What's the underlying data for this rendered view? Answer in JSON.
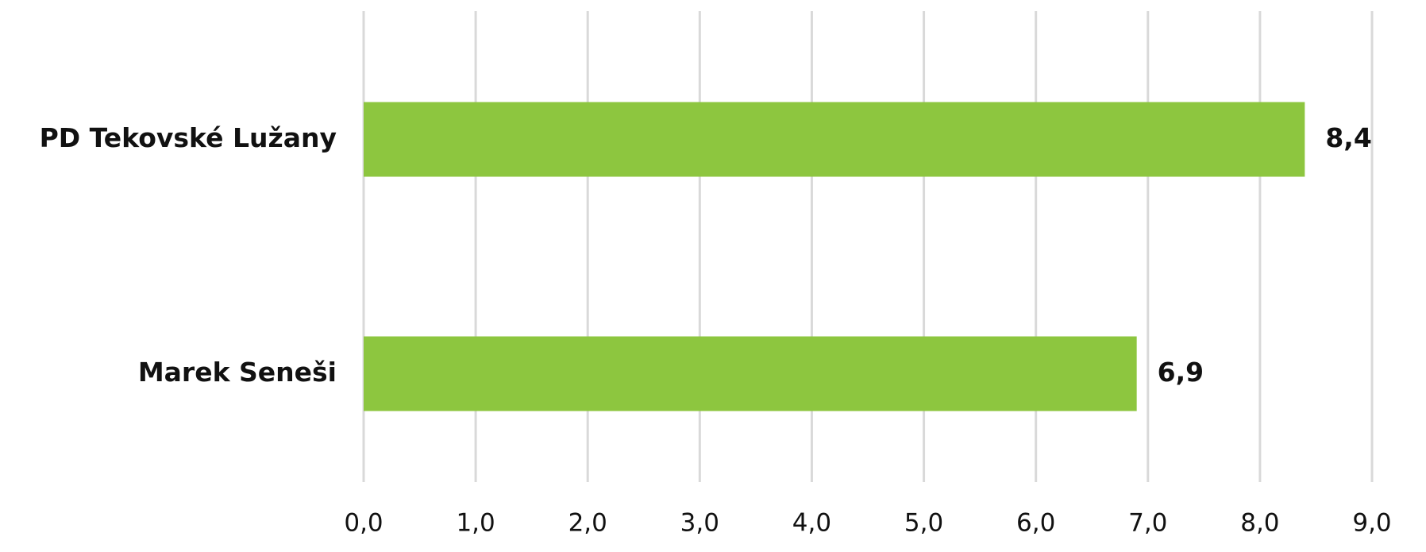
{
  "chart_data": {
    "type": "bar",
    "orientation": "horizontal",
    "categories": [
      "PD Tekovské Lužany",
      "Marek Seneši"
    ],
    "values": [
      8.4,
      6.9
    ],
    "value_labels": [
      "8,4",
      "6,9"
    ],
    "color": "#8dc63f",
    "xlim": [
      0,
      9
    ],
    "xticks": [
      {
        "value": 0,
        "label": "0,0"
      },
      {
        "value": 1,
        "label": "1,0"
      },
      {
        "value": 2,
        "label": "2,0"
      },
      {
        "value": 3,
        "label": "3,0"
      },
      {
        "value": 4,
        "label": "4,0"
      },
      {
        "value": 5,
        "label": "5,0"
      },
      {
        "value": 6,
        "label": "6,0"
      },
      {
        "value": 7,
        "label": "7,0"
      },
      {
        "value": 8,
        "label": "8,0"
      },
      {
        "value": 9,
        "label": "9,0"
      }
    ],
    "grid": true
  }
}
